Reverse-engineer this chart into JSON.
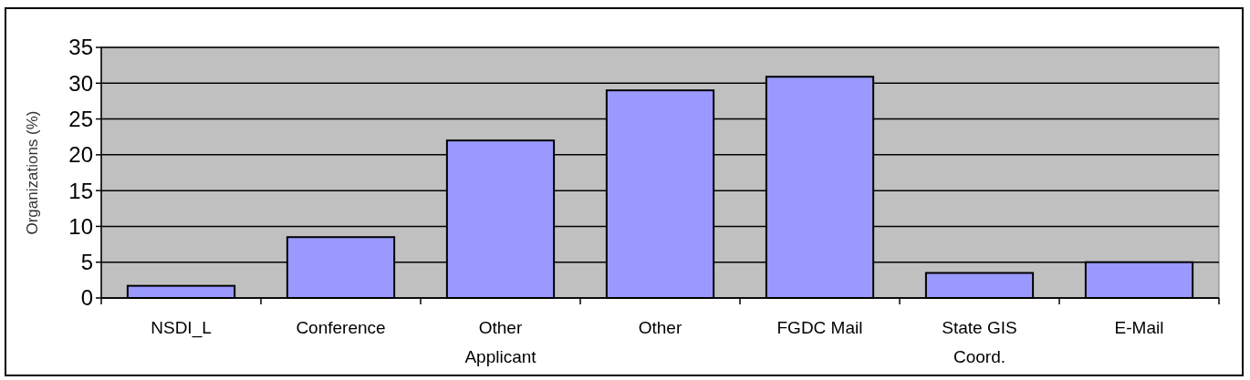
{
  "chart_data": {
    "type": "bar",
    "ylabel": "Organizations (%)",
    "categories": [
      "NSDI_L",
      "Conference",
      "Other Applicant",
      "Other",
      "FGDC Mail",
      "State GIS Coord.",
      "E-Mail"
    ],
    "values": [
      1.7,
      8.5,
      22,
      29,
      30.9,
      3.5,
      5.0
    ],
    "color": "#9999ff",
    "ylim": [
      0,
      35
    ],
    "yticks": [
      0,
      5,
      10,
      15,
      20,
      25,
      30,
      35
    ],
    "grid": "y"
  }
}
